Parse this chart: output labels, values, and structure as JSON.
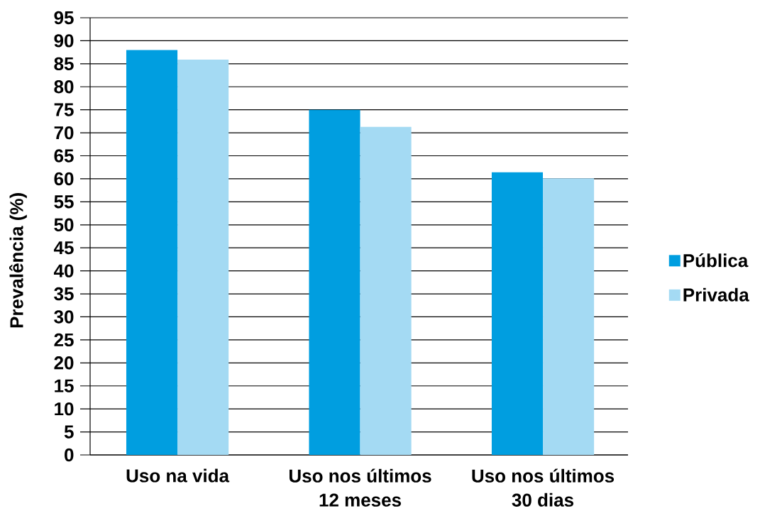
{
  "chart_data": {
    "type": "bar",
    "ylabel": "Prevalência (%)",
    "categories": [
      "Uso na vida",
      "Uso nos últimos 12 meses",
      "Uso nos últimos 30 dias"
    ],
    "series": [
      {
        "name": "Pública",
        "color": "#009ee0",
        "values": [
          88.0,
          75.0,
          61.4
        ]
      },
      {
        "name": "Privada",
        "color": "#a4daf3",
        "values": [
          85.9,
          71.3,
          60.1
        ]
      }
    ],
    "ylim": [
      0,
      95
    ],
    "yticks": [
      0,
      5,
      10,
      15,
      20,
      25,
      30,
      35,
      40,
      45,
      50,
      55,
      60,
      65,
      70,
      75,
      80,
      85,
      90,
      95
    ],
    "grid": "y",
    "legend": "right"
  }
}
